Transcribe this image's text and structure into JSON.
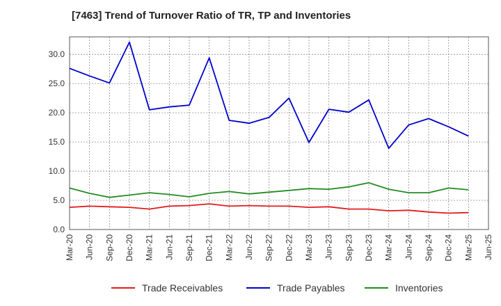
{
  "chart_data": {
    "type": "line",
    "title": "[7463]  Trend of Turnover Ratio of TR, TP and Inventories",
    "xlabel": "",
    "ylabel": "",
    "ylim": [
      0,
      33
    ],
    "yticks": [
      "0.0",
      "5.0",
      "10.0",
      "15.0",
      "20.0",
      "25.0",
      "30.0"
    ],
    "ytick_values": [
      0,
      5,
      10,
      15,
      20,
      25,
      30
    ],
    "grid": true,
    "legend_position": "bottom",
    "categories": [
      "Mar-20",
      "Jun-20",
      "Sep-20",
      "Dec-20",
      "Mar-21",
      "Jun-21",
      "Sep-21",
      "Dec-21",
      "Mar-22",
      "Jun-22",
      "Sep-22",
      "Dec-22",
      "Mar-23",
      "Jun-23",
      "Sep-23",
      "Dec-23",
      "Mar-24",
      "Jun-24",
      "Sep-24",
      "Dec-24",
      "Mar-25",
      "Jun-25"
    ],
    "series": [
      {
        "name": "Trade Receivables",
        "color": "#e31a1c",
        "values": [
          3.8,
          4.0,
          3.9,
          3.8,
          3.5,
          4.0,
          4.1,
          4.4,
          4.0,
          4.1,
          4.0,
          4.0,
          3.8,
          3.9,
          3.5,
          3.5,
          3.2,
          3.3,
          3.0,
          2.8,
          2.9,
          null
        ]
      },
      {
        "name": "Trade Payables",
        "color": "#0000cc",
        "values": [
          27.6,
          26.3,
          25.1,
          32.1,
          20.5,
          21.0,
          21.3,
          29.4,
          18.7,
          18.2,
          19.2,
          22.5,
          14.9,
          20.6,
          20.1,
          22.2,
          13.9,
          17.9,
          19.0,
          17.6,
          16.0,
          null
        ]
      },
      {
        "name": "Inventories",
        "color": "#228b22",
        "values": [
          7.1,
          6.2,
          5.5,
          5.9,
          6.3,
          6.0,
          5.6,
          6.2,
          6.5,
          6.1,
          6.4,
          6.7,
          7.0,
          6.9,
          7.3,
          8.0,
          6.9,
          6.3,
          6.3,
          7.1,
          6.8,
          null
        ]
      }
    ]
  }
}
